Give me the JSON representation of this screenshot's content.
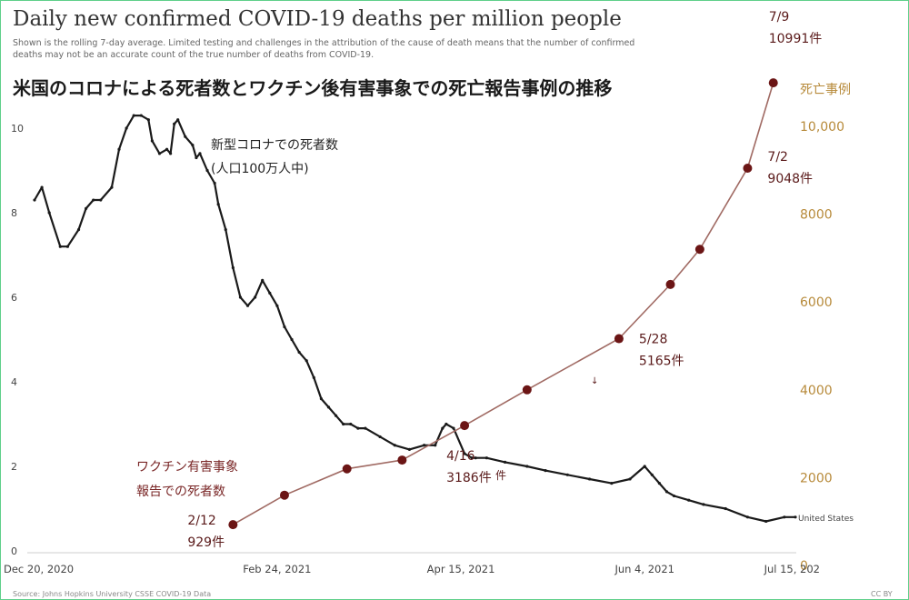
{
  "chart_data": {
    "type": "line",
    "title": "Daily new confirmed COVID-19 deaths per million people",
    "subtitle_lines": [
      "Shown is the rolling 7-day average. Limited testing and challenges in the attribution of the cause of death means that the number of confirmed",
      "deaths may not be an accurate count of the true number of deaths from COVID-19."
    ],
    "overlay_title": "米国のコロナによる死者数とワクチン後有害事象での死亡報告事例の推移",
    "left_axis": {
      "ticks": [
        0,
        2,
        4,
        6,
        8,
        10
      ],
      "range": [
        0,
        10.9
      ]
    },
    "right_axis": {
      "label": "死亡事例",
      "tick_labels": [
        "0",
        "2000",
        "4000",
        "6000",
        "8000",
        "10,000"
      ],
      "ticks": [
        0,
        2000,
        4000,
        6000,
        8000,
        10000
      ],
      "range": [
        -200,
        12000
      ]
    },
    "x_axis": {
      "range": [
        "2020-12-20",
        "2021-07-15"
      ],
      "tick_labels": [
        "Dec 20, 2020",
        "Feb 24, 2021",
        "Apr 15, 2021",
        "Jun 4, 2021",
        "Jul 15, 202"
      ],
      "tick_dates": [
        "2020-12-20",
        "2021-02-24",
        "2021-04-15",
        "2021-06-04",
        "2021-07-15"
      ]
    },
    "series": [
      {
        "name": "United States",
        "axis": "left",
        "color": "#1a1a1a",
        "annotation": [
          "新型コロナでの死者数",
          "(人口100万人中)"
        ],
        "x": [
          "2020-12-20",
          "2020-12-22",
          "2020-12-24",
          "2020-12-27",
          "2020-12-29",
          "2021-01-01",
          "2021-01-03",
          "2021-01-05",
          "2021-01-07",
          "2021-01-10",
          "2021-01-12",
          "2021-01-14",
          "2021-01-16",
          "2021-01-18",
          "2021-01-20",
          "2021-01-21",
          "2021-01-23",
          "2021-01-25",
          "2021-01-26",
          "2021-01-27",
          "2021-01-28",
          "2021-01-30",
          "2021-02-01",
          "2021-02-02",
          "2021-02-03",
          "2021-02-05",
          "2021-02-07",
          "2021-02-08",
          "2021-02-10",
          "2021-02-12",
          "2021-02-14",
          "2021-02-16",
          "2021-02-18",
          "2021-02-20",
          "2021-02-22",
          "2021-02-24",
          "2021-02-26",
          "2021-02-28",
          "2021-03-02",
          "2021-03-04",
          "2021-03-06",
          "2021-03-08",
          "2021-03-10",
          "2021-03-12",
          "2021-03-14",
          "2021-03-16",
          "2021-03-18",
          "2021-03-20",
          "2021-03-24",
          "2021-03-28",
          "2021-04-01",
          "2021-04-05",
          "2021-04-08",
          "2021-04-10",
          "2021-04-11",
          "2021-04-13",
          "2021-04-16",
          "2021-04-18",
          "2021-04-19",
          "2021-04-22",
          "2021-04-27",
          "2021-05-03",
          "2021-05-08",
          "2021-05-14",
          "2021-05-20",
          "2021-05-26",
          "2021-05-31",
          "2021-06-04",
          "2021-06-06",
          "2021-06-08",
          "2021-06-10",
          "2021-06-12",
          "2021-06-16",
          "2021-06-20",
          "2021-06-26",
          "2021-07-02",
          "2021-07-07",
          "2021-07-12",
          "2021-07-15"
        ],
        "y": [
          8.3,
          8.6,
          8.0,
          7.2,
          7.2,
          7.6,
          8.1,
          8.3,
          8.3,
          8.6,
          9.5,
          10.0,
          10.3,
          10.3,
          10.2,
          9.7,
          9.4,
          9.5,
          9.4,
          10.1,
          10.2,
          9.8,
          9.6,
          9.3,
          9.4,
          9.0,
          8.7,
          8.2,
          7.6,
          6.7,
          6.0,
          5.8,
          6.0,
          6.4,
          6.1,
          5.8,
          5.3,
          5.0,
          4.7,
          4.5,
          4.1,
          3.6,
          3.4,
          3.2,
          3.0,
          3.0,
          2.9,
          2.9,
          2.7,
          2.5,
          2.4,
          2.5,
          2.5,
          2.9,
          3.0,
          2.9,
          2.3,
          2.2,
          2.2,
          2.2,
          2.1,
          2.0,
          1.9,
          1.8,
          1.7,
          1.6,
          1.7,
          2.0,
          1.8,
          1.6,
          1.4,
          1.3,
          1.2,
          1.1,
          1.0,
          0.8,
          0.7,
          0.8,
          0.8
        ]
      },
      {
        "name": "ワクチン有害事象報告での死者数",
        "axis": "right",
        "color": "#a06a63",
        "marker_color": "#6b1515",
        "annotation": [
          "ワクチン有害事象",
          "報告での死者数"
        ],
        "x": [
          "2021-02-12",
          "2021-02-26",
          "2021-03-15",
          "2021-03-30",
          "2021-04-16",
          "2021-05-03",
          "2021-05-28",
          "2021-06-11",
          "2021-06-19",
          "2021-07-02",
          "2021-07-09"
        ],
        "y": [
          929,
          1600,
          2200,
          2400,
          3186,
          4000,
          5165,
          6400,
          7200,
          9048,
          10991
        ],
        "point_labels": [
          {
            "i": 0,
            "lines": [
              "2/12",
              "929件"
            ]
          },
          {
            "i": 4,
            "lines": [
              "4/16",
              "3186件"
            ]
          },
          {
            "i": 6,
            "lines": [
              "5/28",
              "5165件"
            ]
          },
          {
            "i": 9,
            "lines": [
              "7/2",
              "9048件"
            ]
          },
          {
            "i": 10,
            "lines": [
              "7/9",
              "10991件"
            ]
          }
        ]
      }
    ],
    "stray_text": [
      "件",
      "↓"
    ],
    "source": "Source: Johns Hopkins University CSSE COVID-19 Data",
    "corner_text": "CC BY",
    "grid": false
  }
}
